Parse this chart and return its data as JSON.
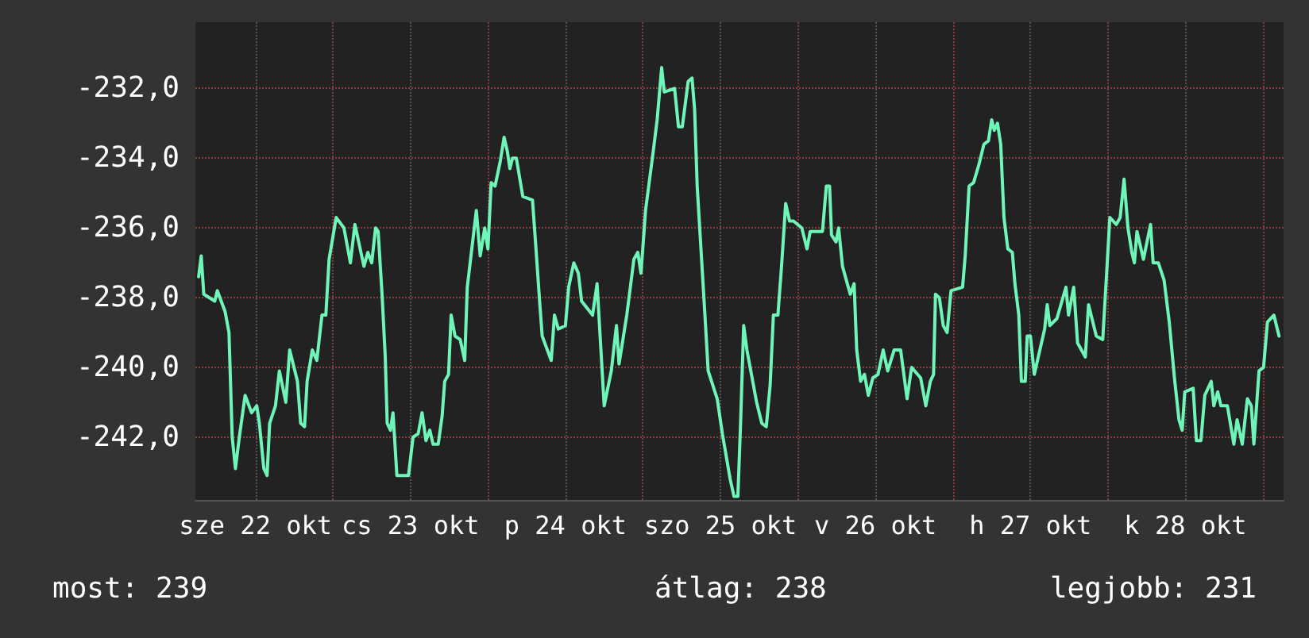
{
  "chart_data": {
    "type": "line",
    "grid": true,
    "marker": "none",
    "line_style": "solid",
    "xlim": [
      "--10-22T02:42",
      "--10-29T03:12"
    ],
    "xticks": [
      {
        "value": "--10-22T12:00",
        "label": "sze 22 okt"
      },
      {
        "value": "--10-23T00:00",
        "label": null
      },
      {
        "value": "--10-23T12:00",
        "label": "cs 23 okt"
      },
      {
        "value": "--10-24T00:00",
        "label": null
      },
      {
        "value": "--10-24T12:00",
        "label": "p 24 okt"
      },
      {
        "value": "--10-25T00:00",
        "label": null
      },
      {
        "value": "--10-25T12:00",
        "label": "szo 25 okt"
      },
      {
        "value": "--10-26T00:00",
        "label": null
      },
      {
        "value": "--10-26T12:00",
        "label": "v 26 okt"
      },
      {
        "value": "--10-27T00:00",
        "label": null
      },
      {
        "value": "--10-27T12:00",
        "label": "h 27 okt"
      },
      {
        "value": "--10-28T00:00",
        "label": null
      },
      {
        "value": "--10-28T12:00",
        "label": "k 28 okt"
      },
      {
        "value": "--10-29T00:00",
        "label": null
      }
    ],
    "ylim": [
      -243.8,
      -230.1
    ],
    "yticks": [
      {
        "value": -242,
        "label": "-242,0"
      },
      {
        "value": -240,
        "label": "-240,0"
      },
      {
        "value": -238,
        "label": "-238,0"
      },
      {
        "value": -236,
        "label": "-236,0"
      },
      {
        "value": -234,
        "label": "-234,0"
      },
      {
        "value": -232,
        "label": "-232,0"
      }
    ],
    "annotations": [
      "most: 239",
      "átlag: 238",
      "legjobb: 231"
    ],
    "series": [
      {
        "color": "#6ff5b8",
        "x": [
          "--10-22T03:12",
          "--10-22T03:36",
          "--10-22T04:00",
          "--10-22T05:42",
          "--10-22T06:06",
          "--10-22T07:18",
          "--10-22T07:54",
          "--10-22T08:24",
          "--10-22T08:54",
          "--10-22T09:30",
          "--10-22T10:24",
          "--10-22T11:24",
          "--10-22T12:12",
          "--10-22T12:36",
          "--10-22T13:18",
          "--10-22T13:48",
          "--10-22T14:12",
          "--10-22T15:06",
          "--10-22T15:42",
          "--10-22T16:42",
          "--10-22T17:18",
          "--10-22T18:30",
          "--10-22T19:00",
          "--10-22T19:36",
          "--10-22T20:00",
          "--10-22T20:48",
          "--10-22T21:30",
          "--10-22T22:18",
          "--10-22T22:54",
          "--10-22T23:24",
          "--10-23T00:30",
          "--10-23T01:42",
          "--10-23T02:42",
          "--10-23T03:24",
          "--10-23T04:48",
          "--10-23T05:24",
          "--10-23T06:00",
          "--10-23T06:36",
          "--10-23T07:00",
          "--10-23T07:36",
          "--10-23T08:06",
          "--10-23T08:24",
          "--10-23T08:54",
          "--10-23T09:18",
          "--10-23T09:54",
          "--10-23T11:42",
          "--10-23T12:24",
          "--10-23T13:12",
          "--10-23T13:48",
          "--10-23T14:24",
          "--10-23T15:00",
          "--10-23T15:30",
          "--10-23T16:18",
          "--10-23T16:54",
          "--10-23T17:18",
          "--10-23T17:54",
          "--10-23T18:18",
          "--10-23T18:54",
          "--10-23T19:42",
          "--10-23T20:24",
          "--10-23T20:48",
          "--10-23T22:12",
          "--10-23T22:48",
          "--10-23T23:30",
          "--10-24T00:00",
          "--10-24T00:30",
          "--10-24T01:06",
          "--10-24T01:54",
          "--10-24T02:30",
          "--10-24T03:00",
          "--10-24T03:24",
          "--10-24T03:48",
          "--10-24T04:24",
          "--10-24T05:24",
          "--10-24T06:54",
          "--10-24T07:24",
          "--10-24T08:00",
          "--10-24T08:24",
          "--10-24T09:48",
          "--10-24T10:18",
          "--10-24T10:54",
          "--10-24T12:00",
          "--10-24T12:30",
          "--10-24T13:18",
          "--10-24T14:00",
          "--10-24T14:30",
          "--10-24T16:12",
          "--10-24T16:54",
          "--10-24T17:24",
          "--10-24T18:00",
          "--10-24T19:06",
          "--10-24T19:54",
          "--10-24T20:18",
          "--10-24T21:30",
          "--10-24T22:36",
          "--10-24T23:12",
          "--10-24T23:42",
          "--10-25T00:24",
          "--10-25T01:36",
          "--10-25T02:12",
          "--10-25T02:54",
          "--10-25T03:18",
          "--10-25T04:54",
          "--10-25T05:30",
          "--10-25T06:06",
          "--10-25T07:00",
          "--10-25T07:36",
          "--10-25T08:00",
          "--10-25T08:24",
          "--10-25T09:36",
          "--10-25T10:06",
          "--10-25T11:30",
          "--10-25T12:18",
          "--10-25T13:30",
          "--10-25T14:06",
          "--10-25T14:42",
          "--10-25T15:06",
          "--10-25T15:36",
          "--10-25T16:06",
          "--10-25T17:36",
          "--10-25T18:24",
          "--10-25T19:06",
          "--10-25T19:42",
          "--10-25T20:12",
          "--10-25T20:54",
          "--10-25T21:30",
          "--10-25T22:06",
          "--10-25T22:42",
          "--10-25T23:18",
          "--10-26T00:36",
          "--10-26T01:24",
          "--10-26T01:54",
          "--10-26T03:48",
          "--10-26T04:24",
          "--10-26T04:54",
          "--10-26T05:12",
          "--10-26T05:54",
          "--10-26T06:18",
          "--10-26T06:54",
          "--10-26T08:06",
          "--10-26T08:42",
          "--10-26T09:06",
          "--10-26T09:42",
          "--10-26T10:18",
          "--10-26T10:54",
          "--10-26T11:36",
          "--10-26T12:24",
          "--10-26T13:12",
          "--10-26T13:54",
          "--10-26T14:54",
          "--10-26T15:54",
          "--10-26T16:54",
          "--10-26T17:36",
          "--10-26T19:00",
          "--10-26T19:48",
          "--10-26T20:30",
          "--10-26T21:00",
          "--10-26T21:18",
          "--10-26T21:54",
          "--10-26T22:30",
          "--10-26T23:06",
          "--10-26T23:42",
          "--10-27T01:30",
          "--10-27T01:54",
          "--10-27T02:30",
          "--10-27T03:12",
          "--10-27T04:00",
          "--10-27T04:48",
          "--10-27T05:30",
          "--10-27T06:00",
          "--10-27T06:24",
          "--10-27T06:54",
          "--10-27T07:24",
          "--10-27T07:54",
          "--10-27T08:30",
          "--10-27T09:12",
          "--10-27T09:36",
          "--10-27T10:12",
          "--10-27T10:36",
          "--10-27T11:12",
          "--10-27T11:30",
          "--10-27T12:00",
          "--10-27T12:36",
          "--10-27T14:12",
          "--10-27T14:36",
          "--10-27T15:00",
          "--10-27T16:06",
          "--10-27T17:30",
          "--10-27T17:54",
          "--10-27T18:42",
          "--10-27T19:18",
          "--10-27T20:30",
          "--10-27T21:00",
          "--10-27T22:12",
          "--10-27T23:12",
          "--10-27T23:48",
          "--10-28T00:18",
          "--10-28T01:18",
          "--10-28T01:54",
          "--10-28T02:30",
          "--10-28T03:06",
          "--10-28T03:42",
          "--10-28T04:06",
          "--10-28T04:30",
          "--10-28T05:30",
          "--10-28T06:36",
          "--10-28T07:00",
          "--10-28T07:48",
          "--10-28T08:42",
          "--10-28T09:30",
          "--10-28T10:18",
          "--10-28T11:00",
          "--10-28T11:30",
          "--10-28T11:54",
          "--10-28T13:12",
          "--10-28T13:42",
          "--10-28T14:24",
          "--10-28T15:00",
          "--10-28T16:00",
          "--10-28T16:24",
          "--10-28T17:00",
          "--10-28T17:30",
          "--10-28T18:30",
          "--10-28T19:30",
          "--10-28T20:00",
          "--10-28T20:48",
          "--10-28T21:36",
          "--10-28T22:12",
          "--10-28T22:36",
          "--10-28T23:24",
          "--10-29T00:06",
          "--10-29T00:42",
          "--10-29T01:42",
          "--10-29T02:30"
        ],
        "values": [
          -237.4,
          -236.8,
          -237.9,
          -238.1,
          -237.8,
          -238.4,
          -239.0,
          -242.0,
          -242.9,
          -242.0,
          -240.8,
          -241.3,
          -241.1,
          -241.6,
          -242.9,
          -243.1,
          -241.6,
          -241.1,
          -240.1,
          -241.0,
          -239.5,
          -240.4,
          -241.6,
          -241.7,
          -240.4,
          -239.5,
          -239.8,
          -238.5,
          -238.5,
          -236.9,
          -235.7,
          -236.0,
          -237.0,
          -235.9,
          -237.1,
          -236.7,
          -237.0,
          -236.0,
          -236.1,
          -237.9,
          -239.7,
          -241.6,
          -241.8,
          -241.3,
          -243.1,
          -243.1,
          -242.0,
          -241.9,
          -241.3,
          -242.1,
          -241.8,
          -242.2,
          -242.2,
          -241.4,
          -240.4,
          -240.2,
          -238.5,
          -239.1,
          -239.2,
          -239.8,
          -237.7,
          -235.5,
          -236.8,
          -236.0,
          -236.6,
          -234.7,
          -234.8,
          -234.1,
          -233.4,
          -233.8,
          -234.3,
          -234.0,
          -234.0,
          -235.1,
          -235.2,
          -236.5,
          -238.1,
          -239.1,
          -239.8,
          -238.5,
          -238.9,
          -238.8,
          -237.7,
          -237.0,
          -237.3,
          -238.1,
          -238.5,
          -237.6,
          -239.2,
          -241.1,
          -240.1,
          -238.8,
          -239.9,
          -238.5,
          -236.9,
          -236.7,
          -237.3,
          -235.5,
          -233.8,
          -232.9,
          -231.4,
          -232.1,
          -232.0,
          -233.1,
          -233.1,
          -231.8,
          -231.7,
          -232.6,
          -234.8,
          -238.5,
          -240.1,
          -240.9,
          -241.9,
          -243.2,
          -243.7,
          -243.7,
          -241.7,
          -238.8,
          -239.5,
          -241.0,
          -241.6,
          -241.7,
          -240.5,
          -238.5,
          -238.5,
          -237.0,
          -235.3,
          -235.8,
          -235.8,
          -236.0,
          -236.6,
          -236.1,
          -236.1,
          -234.8,
          -234.8,
          -236.2,
          -236.4,
          -236.0,
          -237.1,
          -237.9,
          -237.6,
          -239.5,
          -240.4,
          -240.2,
          -240.8,
          -240.3,
          -240.2,
          -239.5,
          -240.1,
          -239.5,
          -239.5,
          -240.9,
          -240.0,
          -240.3,
          -241.1,
          -240.4,
          -240.2,
          -237.9,
          -238.0,
          -238.8,
          -239.0,
          -237.8,
          -237.7,
          -236.8,
          -234.8,
          -234.7,
          -234.2,
          -233.6,
          -233.5,
          -232.9,
          -233.2,
          -233.0,
          -233.6,
          -235.7,
          -236.6,
          -236.7,
          -237.6,
          -238.5,
          -240.4,
          -240.4,
          -239.1,
          -239.1,
          -240.2,
          -238.9,
          -238.2,
          -238.8,
          -238.6,
          -237.7,
          -238.5,
          -237.7,
          -239.3,
          -239.7,
          -238.2,
          -239.1,
          -239.2,
          -237.3,
          -235.7,
          -235.9,
          -235.7,
          -234.6,
          -236.0,
          -236.7,
          -237.0,
          -236.1,
          -236.9,
          -235.9,
          -237.0,
          -237.0,
          -237.5,
          -238.7,
          -240.3,
          -241.5,
          -241.8,
          -240.7,
          -240.6,
          -242.1,
          -242.1,
          -240.8,
          -240.4,
          -241.1,
          -240.7,
          -241.1,
          -241.1,
          -242.2,
          -241.5,
          -242.2,
          -240.9,
          -241.1,
          -242.2,
          -240.1,
          -240.0,
          -238.7,
          -238.5,
          -239.1
        ]
      }
    ]
  }
}
